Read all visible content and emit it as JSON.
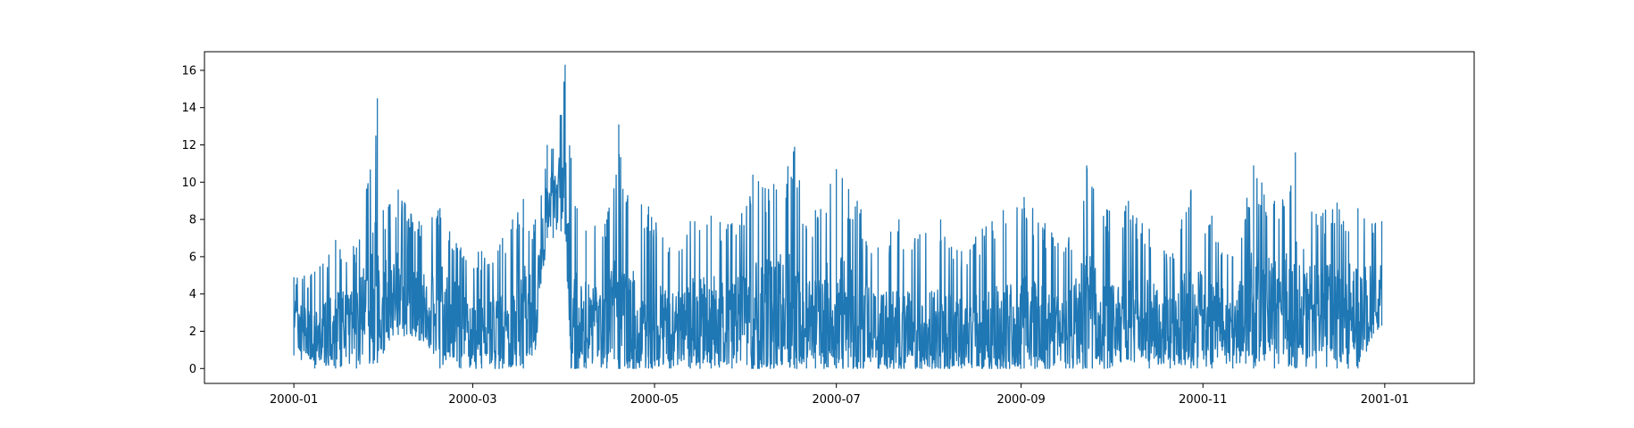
{
  "chart_data": {
    "type": "line",
    "title": "",
    "xlabel": "",
    "ylabel": "",
    "x_range": [
      "2000-01-01",
      "2001-01-01"
    ],
    "xlim": [
      "1999-12-02",
      "2001-01-31"
    ],
    "ylim": [
      -0.8,
      17.0
    ],
    "x_ticks": [
      "2000-01",
      "2000-03",
      "2000-05",
      "2000-07",
      "2000-09",
      "2000-11",
      "2001-01"
    ],
    "y_ticks": [
      0,
      2,
      4,
      6,
      8,
      10,
      12,
      14,
      16
    ],
    "grid": false,
    "legend": "none",
    "color": "#1f77b4",
    "series": [
      {
        "x": [
          "2000-01-01",
          "2000-01-08",
          "2000-01-15",
          "2000-01-22",
          "2000-01-29",
          "2000-01-31",
          "2000-02-02",
          "2000-02-05",
          "2000-02-12",
          "2000-02-19",
          "2000-02-26",
          "2000-03-04",
          "2000-03-11",
          "2000-03-18",
          "2000-03-22",
          "2000-03-26",
          "2000-03-28",
          "2000-04-01",
          "2000-04-03",
          "2000-04-05",
          "2000-04-08",
          "2000-04-15",
          "2000-04-19",
          "2000-04-22",
          "2000-04-29",
          "2000-05-06",
          "2000-05-13",
          "2000-05-20",
          "2000-05-27",
          "2000-06-03",
          "2000-06-10",
          "2000-06-17",
          "2000-06-21",
          "2000-06-24",
          "2000-07-01",
          "2000-07-08",
          "2000-07-15",
          "2000-07-22",
          "2000-07-29",
          "2000-08-05",
          "2000-08-12",
          "2000-08-19",
          "2000-08-26",
          "2000-09-02",
          "2000-09-09",
          "2000-09-16",
          "2000-09-23",
          "2000-09-30",
          "2000-10-07",
          "2000-10-14",
          "2000-10-21",
          "2000-10-28",
          "2000-11-04",
          "2000-11-11",
          "2000-11-18",
          "2000-11-25",
          "2000-12-02",
          "2000-12-09",
          "2000-12-16",
          "2000-12-23",
          "2000-12-31"
        ],
        "max": [
          4.9,
          5.2,
          6.9,
          6.5,
          14.5,
          8.5,
          8.8,
          9.6,
          7.9,
          8.6,
          6.5,
          6.3,
          7.0,
          9.1,
          8.0,
          12.0,
          11.8,
          16.3,
          11.3,
          8.6,
          7.4,
          8.0,
          13.1,
          9.3,
          8.7,
          6.5,
          7.9,
          8.2,
          7.8,
          10.4,
          9.9,
          11.9,
          7.5,
          8.5,
          10.7,
          9.0,
          6.5,
          8.0,
          7.2,
          8.0,
          6.3,
          7.5,
          8.5,
          9.2,
          7.8,
          6.5,
          10.9,
          8.5,
          9.0,
          7.5,
          6.0,
          9.6,
          8.2,
          6.0,
          10.9,
          9.0,
          11.6,
          8.3,
          8.9,
          8.6,
          7.9
        ],
        "min": [
          0.7,
          0.0,
          0.0,
          0.0,
          0.3,
          0.8,
          1.5,
          1.8,
          1.5,
          0.0,
          0.0,
          0.0,
          0.0,
          0.0,
          1.0,
          7.0,
          7.0,
          7.2,
          0.0,
          0.0,
          0.0,
          0.0,
          0.0,
          0.0,
          0.0,
          0.0,
          0.0,
          0.0,
          0.0,
          0.0,
          0.0,
          0.0,
          0.0,
          0.0,
          0.0,
          0.0,
          0.0,
          0.0,
          0.0,
          0.0,
          0.0,
          0.0,
          0.0,
          0.0,
          0.0,
          0.0,
          0.0,
          0.0,
          0.5,
          0.0,
          0.0,
          0.0,
          0.0,
          0.0,
          0.0,
          0.0,
          0.0,
          0.0,
          0.0,
          0.0,
          2.3
        ],
        "mid": [
          2.5,
          1.5,
          2.0,
          2.5,
          4.0,
          3.5,
          4.0,
          4.0,
          3.5,
          3.0,
          2.5,
          2.0,
          2.0,
          3.0,
          2.5,
          9.0,
          9.0,
          9.5,
          2.5,
          2.5,
          2.5,
          2.5,
          3.0,
          2.5,
          2.5,
          2.0,
          2.5,
          2.5,
          2.5,
          2.5,
          3.0,
          3.0,
          2.5,
          2.5,
          3.0,
          2.5,
          2.0,
          2.0,
          2.0,
          2.0,
          2.0,
          2.0,
          2.0,
          2.5,
          2.0,
          2.0,
          3.0,
          2.5,
          2.5,
          2.5,
          2.0,
          3.0,
          2.5,
          2.0,
          3.5,
          3.0,
          3.5,
          3.0,
          3.0,
          3.0,
          4.0
        ]
      }
    ]
  }
}
